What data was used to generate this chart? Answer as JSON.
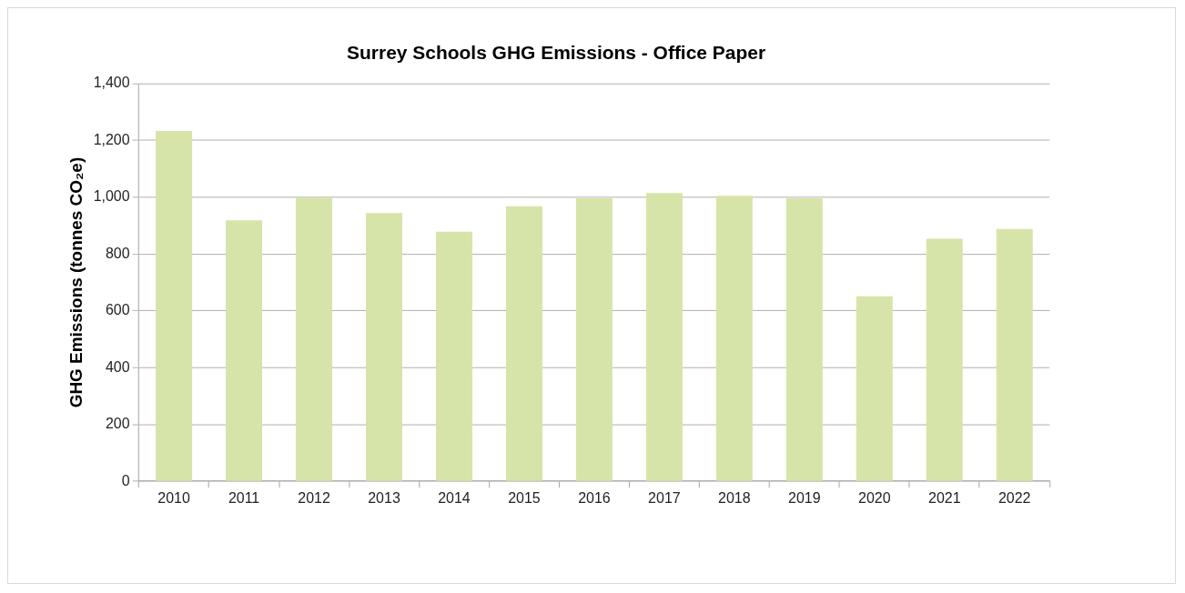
{
  "chart_data": {
    "type": "bar",
    "title": "Surrey Schools GHG Emissions - Office Paper",
    "ylabel": "GHG Emissions (tonnes CO₂e)",
    "categories": [
      "2010",
      "2011",
      "2012",
      "2013",
      "2014",
      "2015",
      "2016",
      "2017",
      "2018",
      "2019",
      "2020",
      "2021",
      "2022"
    ],
    "values": [
      1233,
      919,
      999,
      944,
      879,
      968,
      996,
      1015,
      1005,
      996,
      651,
      854,
      888
    ],
    "color": "#d7e4a9",
    "ylim": [
      0,
      1400
    ],
    "yticks": [
      0,
      200,
      400,
      600,
      800,
      {
        "value": 1000,
        "label": "1,000"
      },
      {
        "value": 1200,
        "label": "1,200"
      },
      {
        "value": 1400,
        "label": "1,400"
      }
    ],
    "grid": "y",
    "legend": false
  }
}
